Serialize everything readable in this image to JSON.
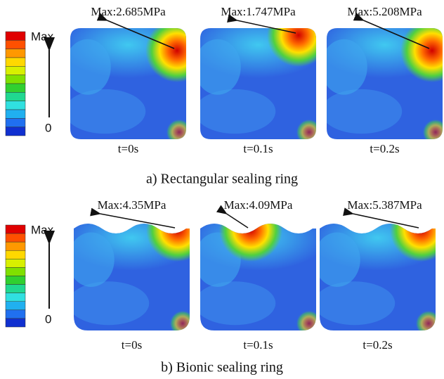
{
  "panels": [
    {
      "caption": "a) Rectangular sealing ring",
      "legend": {
        "max": "Max",
        "min": "0"
      },
      "frames": [
        {
          "max_label": "Max:2.685MPa",
          "time": "t=0s"
        },
        {
          "max_label": "Max:1.747MPa",
          "time": "t=0.1s"
        },
        {
          "max_label": "Max:5.208MPa",
          "time": "t=0.2s"
        }
      ]
    },
    {
      "caption": "b) Bionic sealing ring",
      "legend": {
        "max": "Max",
        "min": "0"
      },
      "frames": [
        {
          "max_label": "Max:4.35MPa",
          "time": "t=0s"
        },
        {
          "max_label": "Max:4.09MPa",
          "time": "t=0.1s"
        },
        {
          "max_label": "Max:5.387MPa",
          "time": "t=0.2s"
        }
      ]
    }
  ]
}
